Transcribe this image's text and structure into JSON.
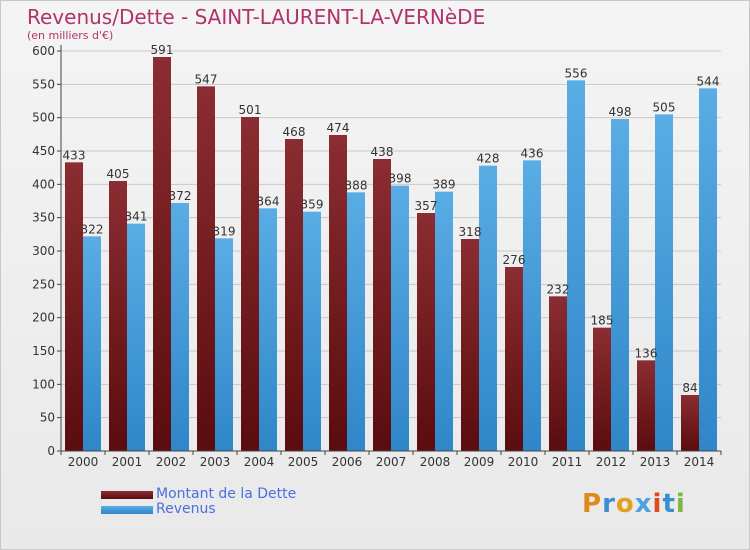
{
  "header": {
    "title": "Revenus/Dette - SAINT-LAURENT-LA-VERNèDE",
    "subtitle": "(en milliers d'€)"
  },
  "colors": {
    "title": "#b0336a",
    "dette_top": "#8b2d32",
    "dette_bottom": "#5a0c0e",
    "revenus_top": "#5aace4",
    "revenus_bottom": "#2f86c8",
    "legend_text": "#4a6fe0"
  },
  "legend": {
    "items": [
      {
        "label": "Montant de la Dette",
        "color": "#5a0c0e"
      },
      {
        "label": "Revenus",
        "color": "#4aa3e0"
      }
    ]
  },
  "logo": {
    "text": "Proxiti",
    "colors": [
      "#e08a1a",
      "#3a8fd0",
      "#e0a020",
      "#4aa3e0",
      "#e04a1a",
      "#3a8fd0",
      "#7ab840"
    ]
  },
  "chart_data": {
    "type": "bar",
    "categories": [
      "2000",
      "2001",
      "2002",
      "2003",
      "2004",
      "2005",
      "2006",
      "2007",
      "2008",
      "2009",
      "2010",
      "2011",
      "2012",
      "2013",
      "2014"
    ],
    "series": [
      {
        "name": "Montant de la Dette",
        "values": [
          433,
          405,
          591,
          547,
          501,
          468,
          474,
          438,
          357,
          318,
          276,
          232,
          185,
          136,
          84
        ]
      },
      {
        "name": "Revenus",
        "values": [
          322,
          341,
          372,
          319,
          364,
          359,
          388,
          398,
          389,
          428,
          436,
          556,
          498,
          505,
          544
        ]
      }
    ],
    "yticks": [
      0,
      50,
      100,
      150,
      200,
      250,
      300,
      350,
      400,
      450,
      500,
      550,
      600
    ],
    "ylim": [
      0,
      600
    ],
    "grid": true,
    "legend_position": "bottom-left"
  }
}
